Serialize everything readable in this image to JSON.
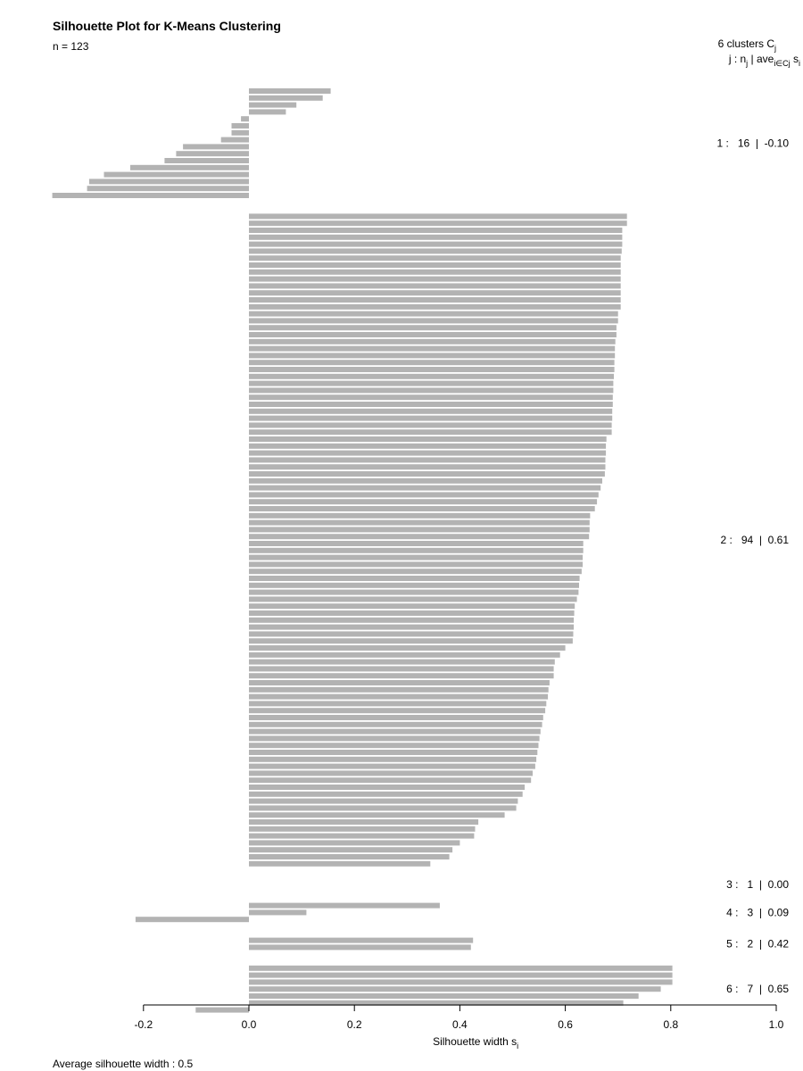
{
  "title": "Silhouette Plot for K-Means Clustering",
  "subtitle": "n = 123",
  "footer": "Average silhouette width :  0.5",
  "legend": {
    "header": "6  clusters  C",
    "header_sub": "j",
    "row2_prefix": "j :  n",
    "row2_sub1": "j",
    "row2_mid": " | ave",
    "row2_sub2": "i∈Cj",
    "row2_s": "  s",
    "row2_sub3": "i"
  },
  "colors": {
    "bar": "#b3b3b3",
    "axis": "#000000"
  },
  "chart_data": {
    "type": "bar",
    "orientation": "horizontal",
    "title": "Silhouette Plot for K-Means Clustering",
    "xlabel": "Silhouette width s",
    "xlabel_sub": "i",
    "xlim": [
      -0.2,
      1.0
    ],
    "xticks": [
      "-0.2",
      "0.0",
      "0.2",
      "0.4",
      "0.6",
      "0.8",
      "1.0"
    ],
    "xtick_values": [
      -0.2,
      0.0,
      0.2,
      0.4,
      0.6,
      0.8,
      1.0
    ],
    "grid": false,
    "n": 123,
    "n_clusters": 6,
    "average_silhouette_width": 0.5,
    "clusters": [
      {
        "j": 1,
        "n": 16,
        "ave": -0.1,
        "label": "1 :   16  |  -0.10",
        "values": [
          0.155,
          0.14,
          0.09,
          0.07,
          -0.015,
          -0.033,
          -0.033,
          -0.053,
          -0.125,
          -0.138,
          -0.16,
          -0.225,
          -0.275,
          -0.303,
          -0.307,
          -0.373
        ]
      },
      {
        "j": 2,
        "n": 94,
        "ave": 0.61,
        "label": "2 :   94  |  0.61",
        "values": [
          0.717,
          0.717,
          0.708,
          0.708,
          0.708,
          0.707,
          0.705,
          0.705,
          0.705,
          0.705,
          0.705,
          0.705,
          0.705,
          0.705,
          0.7,
          0.7,
          0.697,
          0.697,
          0.695,
          0.694,
          0.694,
          0.693,
          0.693,
          0.692,
          0.691,
          0.691,
          0.69,
          0.69,
          0.689,
          0.689,
          0.688,
          0.688,
          0.678,
          0.677,
          0.677,
          0.676,
          0.676,
          0.675,
          0.67,
          0.667,
          0.663,
          0.66,
          0.656,
          0.647,
          0.646,
          0.646,
          0.645,
          0.634,
          0.634,
          0.633,
          0.633,
          0.631,
          0.627,
          0.626,
          0.625,
          0.622,
          0.618,
          0.617,
          0.616,
          0.616,
          0.615,
          0.614,
          0.6,
          0.59,
          0.58,
          0.578,
          0.578,
          0.57,
          0.568,
          0.567,
          0.564,
          0.562,
          0.558,
          0.556,
          0.553,
          0.551,
          0.549,
          0.547,
          0.545,
          0.543,
          0.538,
          0.535,
          0.523,
          0.519,
          0.51,
          0.507,
          0.485,
          0.435,
          0.429,
          0.427,
          0.4,
          0.386,
          0.38,
          0.344
        ]
      },
      {
        "j": 3,
        "n": 1,
        "ave": 0.0,
        "label": "3 :   1  |  0.00",
        "values": [
          0.0
        ]
      },
      {
        "j": 4,
        "n": 3,
        "ave": 0.09,
        "label": "4 :   3  |  0.09",
        "values": [
          0.362,
          0.109,
          -0.215
        ]
      },
      {
        "j": 5,
        "n": 2,
        "ave": 0.42,
        "label": "5 :   2  |  0.42",
        "values": [
          0.425,
          0.421
        ]
      },
      {
        "j": 6,
        "n": 7,
        "ave": 0.65,
        "label": "6 :   7  |  0.65",
        "values": [
          0.803,
          0.803,
          0.803,
          0.781,
          0.739,
          0.71,
          -0.101
        ]
      }
    ]
  }
}
